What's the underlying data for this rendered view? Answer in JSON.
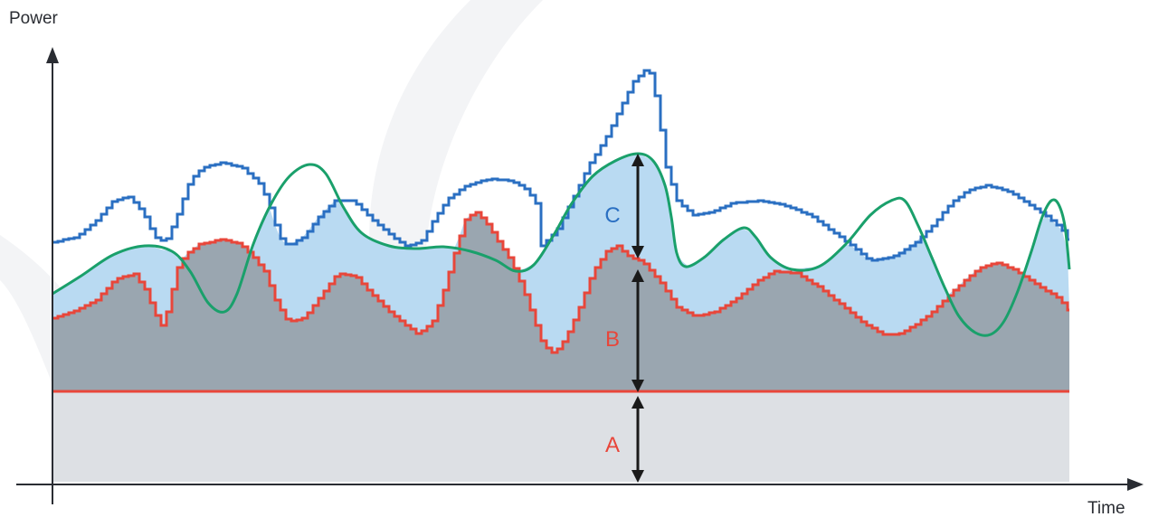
{
  "y_axis_label": "Power",
  "x_axis_label": "Time",
  "segments": {
    "a": {
      "label": "A",
      "color": "#e8463a"
    },
    "b": {
      "label": "B",
      "color": "#e8463a"
    },
    "c": {
      "label": "C",
      "color": "#2a6fc2"
    }
  },
  "colors": {
    "blue_line": "#2a6fc2",
    "red_line": "#e8463a",
    "green_line": "#1aa06b",
    "baseline": "#e8463a",
    "fill_light_blue": "#b9daf2",
    "fill_slate": "#9aa6b0",
    "fill_light_gray": "#dde0e4",
    "axis": "#2a2d33",
    "arrow": "#1a1a1a"
  }
}
